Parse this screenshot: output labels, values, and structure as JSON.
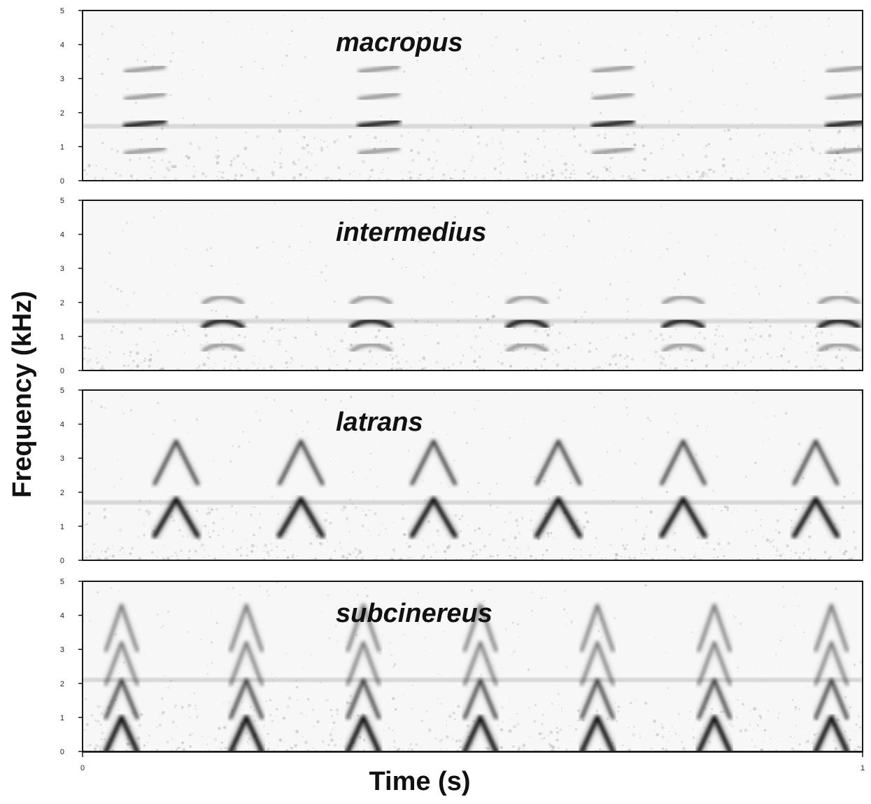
{
  "chart_data": {
    "type": "spectrogram",
    "xlabel": "Time (s)",
    "ylabel": "Frequency (kHz)",
    "xlim": [
      0,
      1
    ],
    "x_ticks": [
      "0",
      "1"
    ],
    "ylim": [
      0,
      5
    ],
    "y_ticks": [
      "0",
      "1",
      "2",
      "3",
      "4",
      "5"
    ],
    "colors": {
      "ink": "#111111",
      "background": "#ffffff"
    },
    "panels": [
      {
        "title": "macropus",
        "note_times": [
          0.08,
          0.38,
          0.68,
          0.98
        ],
        "note_duration": 0.05,
        "noise_band_khz": 1.6,
        "harmonics_khz": [
          1.6,
          0.8,
          2.4,
          3.2
        ],
        "shape": "flat"
      },
      {
        "title": "intermedius",
        "note_times": [
          0.18,
          0.37,
          0.57,
          0.77,
          0.97
        ],
        "note_duration": 0.05,
        "noise_band_khz": 1.45,
        "harmonics_khz": [
          1.4,
          0.7,
          2.1
        ],
        "shape": "arch"
      },
      {
        "title": "latrans",
        "note_times": [
          0.12,
          0.28,
          0.45,
          0.61,
          0.77,
          0.94
        ],
        "note_duration": 0.055,
        "noise_band_khz": 1.7,
        "harmonics_khz": [
          1.8,
          3.5
        ],
        "shape": "inverted-v"
      },
      {
        "title": "subcinereus",
        "note_times": [
          0.05,
          0.21,
          0.36,
          0.51,
          0.66,
          0.81,
          0.96
        ],
        "note_duration": 0.04,
        "noise_band_khz": 2.1,
        "harmonics_khz": [
          1.0,
          2.1,
          3.2,
          4.3
        ],
        "shape": "inverted-v"
      }
    ]
  }
}
